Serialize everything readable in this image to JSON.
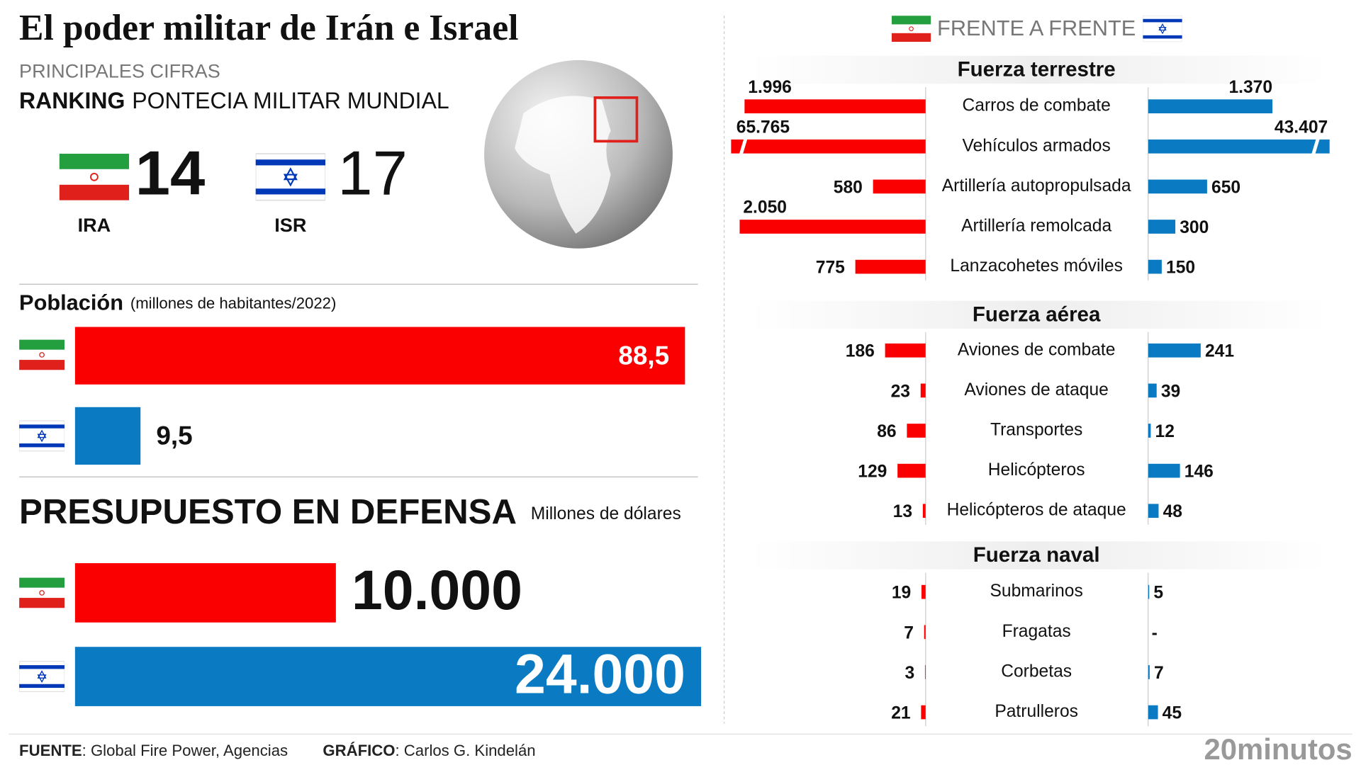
{
  "header": {
    "title": "El poder militar de Irán e Israel",
    "subtitle": "PRINCIPALES CIFRAS",
    "ranking_label": "RANKING",
    "ranking_title": "PONTECIA MILITAR MUNDIAL",
    "right_title": "FRENTE A FRENTE"
  },
  "ranking": [
    {
      "rank": 14,
      "label": "IRA"
    },
    {
      "rank": 17,
      "label": "ISR"
    }
  ],
  "chart_data": [
    {
      "type": "bar",
      "title": "Población",
      "subtitle": "(millones de habitantes/2022)",
      "values": [
        88.5,
        9.5
      ],
      "value_labels": [
        "88,5",
        "9,5"
      ],
      "colors": [
        "#fb0000",
        "#0a7ac2"
      ]
    },
    {
      "type": "bar",
      "title": "PRESUPUESTO EN DEFENSA",
      "subtitle": "Millones de dólares",
      "values": [
        10000,
        24000
      ],
      "value_labels": [
        "10.000",
        "24.000"
      ],
      "colors": [
        "#fb0000",
        "#0a7ac2"
      ]
    },
    {
      "type": "butterfly",
      "title": "Fuerza terrestre",
      "categories": [
        "Carros de combate",
        "Vehículos armados",
        "Artillería autopropulsada",
        "Artillería remolcada",
        "Lanzacohetes móviles"
      ],
      "series": [
        {
          "color": "#fb0000",
          "values": [
            1996,
            65765,
            580,
            2050,
            775
          ],
          "value_labels": [
            "1.996",
            "65.765",
            "580",
            "2.050",
            "775"
          ]
        },
        {
          "color": "#0a7ac2",
          "values": [
            1370,
            43407,
            650,
            300,
            150
          ],
          "value_labels": [
            "1.370",
            "43.407",
            "650",
            "300",
            "150"
          ]
        }
      ]
    },
    {
      "type": "butterfly",
      "title": "Fuerza aérea",
      "categories": [
        "Aviones de combate",
        "Aviones de ataque",
        "Transportes",
        "Helicópteros",
        "Helicópteros de ataque"
      ],
      "series": [
        {
          "color": "#fb0000",
          "values": [
            186,
            23,
            86,
            129,
            13
          ]
        },
        {
          "color": "#0a7ac2",
          "values": [
            241,
            39,
            12,
            146,
            48
          ]
        }
      ]
    },
    {
      "type": "butterfly",
      "title": "Fuerza naval",
      "categories": [
        "Submarinos",
        "Fragatas",
        "Corbetas",
        "Patrulleros"
      ],
      "series": [
        {
          "color": "#fb0000",
          "values": [
            19,
            7,
            3,
            21
          ]
        },
        {
          "color": "#0a7ac2",
          "values": [
            5,
            null,
            7,
            45
          ],
          "value_labels": [
            "5",
            "-",
            "7",
            "45"
          ]
        }
      ]
    }
  ],
  "footer": {
    "source_label": "FUENTE",
    "source": ": Global Fire Power, Agencias",
    "credit_label": "GRÁFICO",
    "credit": ": Carlos G. Kindelán",
    "logo": "20minutos"
  }
}
